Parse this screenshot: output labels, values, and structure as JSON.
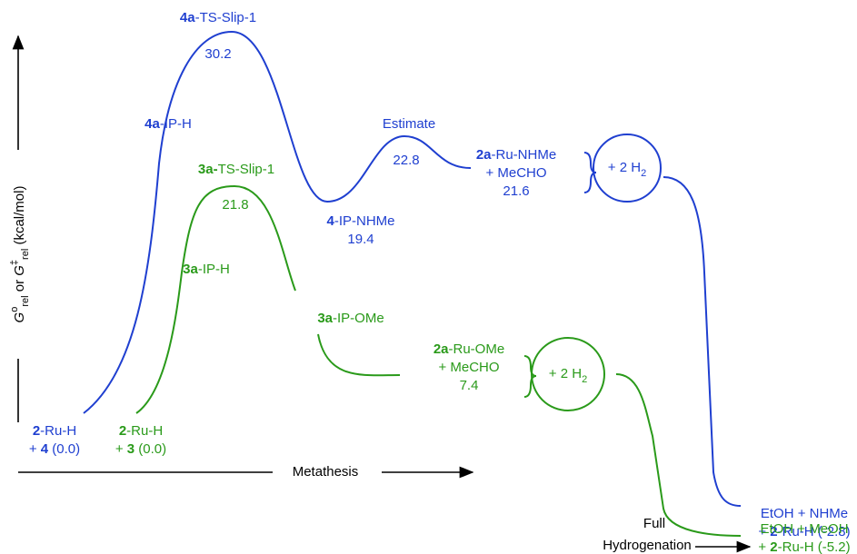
{
  "y_label": [
    {
      "t": "G",
      "i": true
    },
    {
      "t": "o",
      "sup": true
    },
    {
      "t": "rel",
      "sub": true
    },
    {
      "t": " or "
    },
    {
      "t": "G",
      "i": true
    },
    {
      "t": "‡",
      "sup": true
    },
    {
      "t": "rel",
      "sub": true
    },
    {
      "t": " (kcal/mol)"
    }
  ],
  "x_label": "Metathesis",
  "x_label_2": [
    "Full",
    "Hydrogenation"
  ],
  "blue_path": [
    {
      "lines": [
        [
          {
            "t": "4a",
            "b": true
          },
          {
            "t": "-TS-Slip-1"
          }
        ]
      ]
    },
    {
      "lines": [
        [
          {
            "t": "30.2"
          }
        ]
      ]
    },
    {
      "lines": [
        [
          {
            "t": "4a",
            "b": true
          },
          {
            "t": "-IP-H"
          }
        ]
      ]
    },
    {
      "lines": [
        [
          {
            "t": "Estimate"
          }
        ]
      ]
    },
    {
      "lines": [
        [
          {
            "t": "22.8"
          }
        ]
      ]
    },
    {
      "lines": [
        [
          {
            "t": "4",
            "b": true
          },
          {
            "t": "-IP-NHMe"
          }
        ],
        [
          {
            "t": "19.4"
          }
        ]
      ]
    },
    {
      "lines": [
        [
          {
            "t": "2a",
            "b": true
          },
          {
            "t": "-Ru-NHMe"
          }
        ],
        [
          {
            "t": "+ MeCHO"
          }
        ],
        [
          {
            "t": "21.6"
          }
        ]
      ]
    },
    {
      "lines": [
        [
          {
            "t": "+ 2 H"
          },
          {
            "t": "2",
            "sub": true
          }
        ]
      ]
    },
    {
      "lines": [
        [
          {
            "t": "EtOH + NHMe"
          }
        ],
        [
          {
            "t": "+ "
          },
          {
            "t": "2",
            "b": true
          },
          {
            "t": "-Ru-H (-2.8)"
          }
        ]
      ]
    },
    {
      "lines": [
        [
          {
            "t": "2",
            "b": true
          },
          {
            "t": "-Ru-H"
          }
        ],
        [
          {
            "t": "+ "
          },
          {
            "t": "4",
            "b": true
          },
          {
            "t": " (0.0)"
          }
        ]
      ]
    }
  ],
  "green_path": [
    {
      "lines": [
        [
          {
            "t": "3a-",
            "b": true
          },
          {
            "t": "TS-Slip-1"
          }
        ]
      ]
    },
    {
      "lines": [
        [
          {
            "t": "21.8"
          }
        ]
      ]
    },
    {
      "lines": [
        [
          {
            "t": "3a",
            "b": true
          },
          {
            "t": "-IP-H"
          }
        ]
      ]
    },
    {
      "lines": [
        [
          {
            "t": "3a",
            "b": true
          },
          {
            "t": "-IP-OMe"
          }
        ]
      ]
    },
    {
      "lines": [
        [
          {
            "t": "2a",
            "b": true
          },
          {
            "t": "-Ru-OMe"
          }
        ],
        [
          {
            "t": "+ MeCHO"
          }
        ],
        [
          {
            "t": "7.4"
          }
        ]
      ]
    },
    {
      "lines": [
        [
          {
            "t": "+ 2 H"
          },
          {
            "t": "2",
            "sub": true
          }
        ]
      ]
    },
    {
      "lines": [
        [
          {
            "t": "EtOH + MeOH"
          }
        ],
        [
          {
            "t": "+ "
          },
          {
            "t": "2",
            "b": true
          },
          {
            "t": "-Ru-H (-5.2)"
          }
        ]
      ]
    },
    {
      "lines": [
        [
          {
            "t": "2",
            "b": true
          },
          {
            "t": "-Ru-H"
          }
        ],
        [
          {
            "t": "+ "
          },
          {
            "t": "3",
            "b": true
          },
          {
            "t": " (0.0)"
          }
        ]
      ]
    }
  ]
}
